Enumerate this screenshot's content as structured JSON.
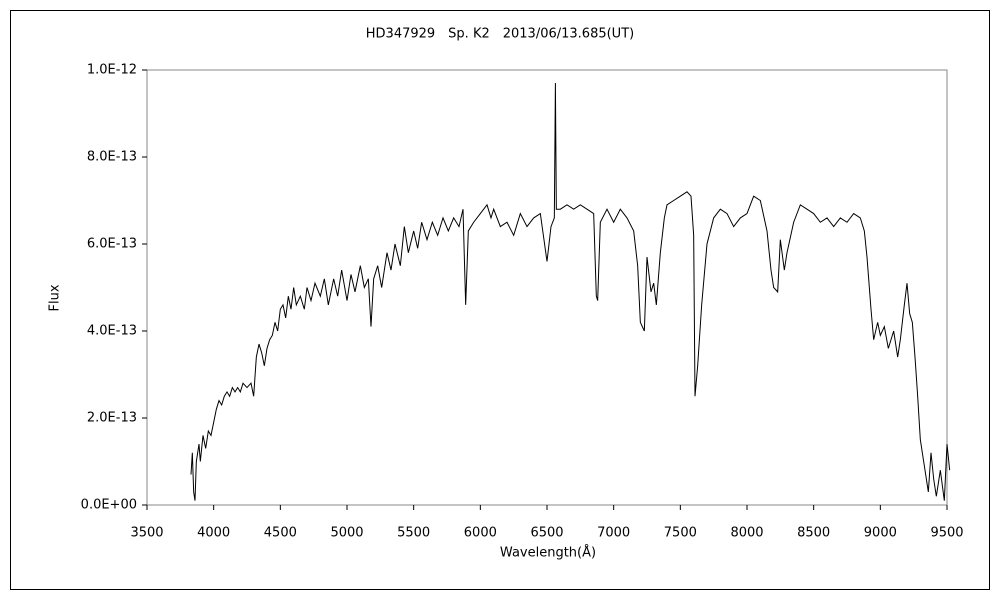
{
  "chart_data": {
    "type": "line",
    "title": "HD347929　Sp. K2　2013/06/13.685(UT)",
    "x_label": "Wavelength(Å)",
    "y_label": "Flux",
    "color": "#000000",
    "grid": false,
    "xlim": [
      3500,
      9500
    ],
    "xticks": [
      3500,
      4000,
      4500,
      5000,
      5500,
      6000,
      6500,
      7000,
      7500,
      8000,
      8500,
      9000,
      9500
    ],
    "ylim": [
      0,
      1e-12
    ],
    "yticks": [
      {
        "value": 0,
        "label": "0.0E+00"
      },
      {
        "value": 2e-13,
        "label": "2.0E-13"
      },
      {
        "value": 4e-13,
        "label": "4.0E-13"
      },
      {
        "value": 6e-13,
        "label": "6.0E-13"
      },
      {
        "value": 8e-13,
        "label": "8.0E-13"
      },
      {
        "value": 1e-12,
        "label": "1.0E-12"
      }
    ],
    "x": [
      3830,
      3840,
      3850,
      3860,
      3870,
      3890,
      3900,
      3920,
      3940,
      3960,
      3980,
      4000,
      4020,
      4040,
      4060,
      4080,
      4100,
      4120,
      4140,
      4160,
      4180,
      4200,
      4220,
      4250,
      4280,
      4300,
      4320,
      4340,
      4360,
      4380,
      4400,
      4420,
      4440,
      4460,
      4480,
      4500,
      4520,
      4540,
      4560,
      4580,
      4600,
      4620,
      4650,
      4680,
      4700,
      4730,
      4760,
      4800,
      4830,
      4860,
      4900,
      4930,
      4960,
      5000,
      5030,
      5060,
      5100,
      5130,
      5160,
      5180,
      5200,
      5230,
      5260,
      5300,
      5330,
      5360,
      5400,
      5430,
      5460,
      5500,
      5530,
      5560,
      5600,
      5640,
      5680,
      5720,
      5760,
      5800,
      5840,
      5870,
      5890,
      5910,
      5950,
      6000,
      6050,
      6080,
      6100,
      6150,
      6200,
      6250,
      6300,
      6350,
      6400,
      6450,
      6500,
      6530,
      6555,
      6563,
      6570,
      6600,
      6650,
      6700,
      6750,
      6800,
      6850,
      6870,
      6880,
      6900,
      6950,
      7000,
      7050,
      7100,
      7150,
      7180,
      7200,
      7230,
      7250,
      7280,
      7300,
      7320,
      7350,
      7380,
      7400,
      7450,
      7500,
      7550,
      7580,
      7600,
      7610,
      7630,
      7660,
      7700,
      7750,
      7800,
      7850,
      7900,
      7950,
      8000,
      8050,
      8100,
      8150,
      8180,
      8200,
      8230,
      8250,
      8280,
      8300,
      8350,
      8400,
      8450,
      8500,
      8550,
      8600,
      8650,
      8700,
      8750,
      8800,
      8850,
      8880,
      8900,
      8930,
      8950,
      8980,
      9000,
      9030,
      9060,
      9100,
      9130,
      9150,
      9180,
      9200,
      9220,
      9240,
      9260,
      9280,
      9300,
      9330,
      9360,
      9380,
      9400,
      9420,
      9450,
      9480,
      9500,
      9520
    ],
    "values": [
      7e-14,
      1.2e-13,
      3e-14,
      1e-14,
      1e-13,
      1.4e-13,
      1e-13,
      1.6e-13,
      1.3e-13,
      1.7e-13,
      1.6e-13,
      1.9e-13,
      2.2e-13,
      2.4e-13,
      2.3e-13,
      2.5e-13,
      2.6e-13,
      2.5e-13,
      2.7e-13,
      2.6e-13,
      2.7e-13,
      2.6e-13,
      2.8e-13,
      2.7e-13,
      2.8e-13,
      2.5e-13,
      3.4e-13,
      3.7e-13,
      3.5e-13,
      3.2e-13,
      3.6e-13,
      3.8e-13,
      3.9e-13,
      4.2e-13,
      4e-13,
      4.5e-13,
      4.6e-13,
      4.3e-13,
      4.8e-13,
      4.5e-13,
      5e-13,
      4.6e-13,
      4.8e-13,
      4.5e-13,
      5e-13,
      4.7e-13,
      5.1e-13,
      4.8e-13,
      5.2e-13,
      4.6e-13,
      5.2e-13,
      4.8e-13,
      5.4e-13,
      4.7e-13,
      5.3e-13,
      4.9e-13,
      5.5e-13,
      5e-13,
      5.2e-13,
      4.1e-13,
      5.2e-13,
      5.5e-13,
      5e-13,
      5.8e-13,
      5.4e-13,
      6e-13,
      5.5e-13,
      6.4e-13,
      5.8e-13,
      6.3e-13,
      5.9e-13,
      6.5e-13,
      6.1e-13,
      6.5e-13,
      6.2e-13,
      6.6e-13,
      6.3e-13,
      6.6e-13,
      6.4e-13,
      6.8e-13,
      4.6e-13,
      6.3e-13,
      6.5e-13,
      6.7e-13,
      6.9e-13,
      6.6e-13,
      6.8e-13,
      6.4e-13,
      6.5e-13,
      6.2e-13,
      6.7e-13,
      6.4e-13,
      6.6e-13,
      6.7e-13,
      5.6e-13,
      6.4e-13,
      6.6e-13,
      9.7e-13,
      6.8e-13,
      6.8e-13,
      6.9e-13,
      6.8e-13,
      6.9e-13,
      6.8e-13,
      6.7e-13,
      4.8e-13,
      4.7e-13,
      6.5e-13,
      6.8e-13,
      6.5e-13,
      6.8e-13,
      6.6e-13,
      6.3e-13,
      5.5e-13,
      4.2e-13,
      4e-13,
      5.7e-13,
      4.9e-13,
      5.1e-13,
      4.6e-13,
      5.8e-13,
      6.6e-13,
      6.9e-13,
      7e-13,
      7.1e-13,
      7.2e-13,
      7.1e-13,
      6.2e-13,
      2.5e-13,
      3.2e-13,
      4.6e-13,
      6e-13,
      6.6e-13,
      6.8e-13,
      6.7e-13,
      6.4e-13,
      6.6e-13,
      6.7e-13,
      7.1e-13,
      7e-13,
      6.3e-13,
      5.4e-13,
      5e-13,
      4.9e-13,
      6.1e-13,
      5.4e-13,
      5.8e-13,
      6.5e-13,
      6.9e-13,
      6.8e-13,
      6.7e-13,
      6.5e-13,
      6.6e-13,
      6.4e-13,
      6.6e-13,
      6.5e-13,
      6.7e-13,
      6.6e-13,
      6.3e-13,
      5.7e-13,
      4.5e-13,
      3.8e-13,
      4.2e-13,
      3.9e-13,
      4.1e-13,
      3.6e-13,
      4e-13,
      3.4e-13,
      3.8e-13,
      4.6e-13,
      5.1e-13,
      4.4e-13,
      4.2e-13,
      3.4e-13,
      2.5e-13,
      1.5e-13,
      9e-14,
      3e-14,
      1.2e-13,
      6e-14,
      2e-14,
      8e-14,
      1e-14,
      1.4e-13,
      8e-14
    ]
  }
}
